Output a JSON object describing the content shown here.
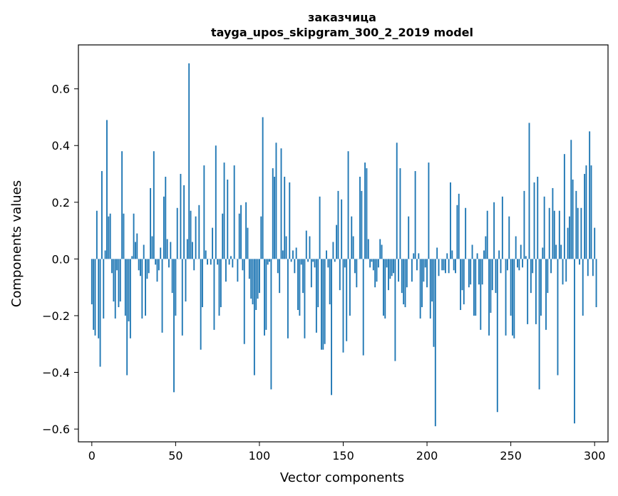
{
  "chart_data": {
    "type": "bar",
    "title": "заказчица",
    "subtitle": "tayga_upos_skipgram_300_2_2019 model",
    "xlabel": "Vector components",
    "ylabel": "Components values",
    "xlim": [
      -8,
      308
    ],
    "ylim": [
      -0.645,
      0.755
    ],
    "xticks": [
      0,
      50,
      100,
      150,
      200,
      250,
      300
    ],
    "yticks": [
      -0.6,
      -0.4,
      -0.2,
      0.0,
      0.2,
      0.4,
      0.6
    ],
    "ytick_labels": [
      "−0.6",
      "−0.4",
      "−0.2",
      "0.0",
      "0.2",
      "0.4",
      "0.6"
    ],
    "bar_color": "#1f77b4",
    "grid": false,
    "legend": "none",
    "values": [
      -0.16,
      -0.25,
      -0.27,
      0.17,
      -0.28,
      -0.38,
      0.31,
      -0.21,
      0.03,
      0.49,
      0.15,
      0.16,
      -0.05,
      -0.15,
      -0.21,
      -0.04,
      -0.17,
      -0.15,
      0.38,
      0.16,
      -0.2,
      -0.41,
      -0.22,
      -0.28,
      0.01,
      0.16,
      0.06,
      0.09,
      -0.04,
      -0.06,
      -0.21,
      0.05,
      -0.2,
      -0.07,
      -0.05,
      0.25,
      0.08,
      0.38,
      -0.02,
      -0.08,
      -0.04,
      0.04,
      -0.26,
      0.22,
      0.29,
      0.07,
      -0.03,
      0.06,
      -0.12,
      -0.47,
      -0.2,
      0.18,
      0.0,
      0.3,
      -0.27,
      0.26,
      -0.15,
      0.07,
      0.69,
      0.17,
      0.06,
      -0.04,
      0.15,
      0.0,
      0.19,
      -0.32,
      -0.17,
      0.33,
      0.03,
      -0.02,
      0.0,
      -0.02,
      0.11,
      -0.25,
      0.4,
      -0.02,
      -0.2,
      -0.17,
      0.16,
      0.34,
      -0.08,
      0.28,
      -0.02,
      0.01,
      -0.03,
      0.33,
      0.0,
      -0.08,
      0.16,
      0.19,
      -0.04,
      -0.3,
      0.2,
      0.11,
      -0.07,
      -0.14,
      -0.16,
      -0.41,
      -0.18,
      -0.14,
      -0.12,
      0.15,
      0.5,
      -0.27,
      -0.25,
      -0.02,
      -0.01,
      -0.46,
      0.32,
      0.29,
      0.41,
      -0.05,
      -0.12,
      0.39,
      0.03,
      0.29,
      0.08,
      -0.28,
      0.27,
      -0.01,
      0.03,
      -0.05,
      0.04,
      -0.18,
      -0.2,
      -0.02,
      -0.12,
      -0.28,
      0.1,
      -0.01,
      0.08,
      -0.1,
      -0.01,
      -0.03,
      -0.26,
      -0.17,
      0.22,
      -0.32,
      -0.32,
      -0.3,
      0.03,
      -0.03,
      -0.16,
      -0.48,
      0.06,
      -0.01,
      0.12,
      0.24,
      -0.11,
      0.21,
      -0.33,
      -0.03,
      -0.29,
      0.38,
      -0.2,
      0.15,
      0.08,
      -0.05,
      -0.1,
      0.0,
      0.29,
      0.24,
      -0.34,
      0.34,
      0.32,
      0.07,
      -0.03,
      -0.01,
      -0.04,
      -0.1,
      -0.08,
      -0.03,
      0.07,
      0.05,
      -0.2,
      -0.21,
      -0.03,
      -0.11,
      -0.07,
      -0.06,
      -0.05,
      -0.36,
      0.41,
      -0.08,
      0.32,
      -0.12,
      -0.16,
      -0.17,
      -0.1,
      0.15,
      0.0,
      -0.08,
      0.02,
      0.31,
      -0.04,
      0.02,
      -0.21,
      -0.17,
      -0.08,
      -0.03,
      -0.1,
      0.34,
      -0.21,
      -0.15,
      -0.31,
      -0.59,
      0.04,
      -0.06,
      0.0,
      -0.04,
      -0.04,
      -0.05,
      0.02,
      -0.05,
      0.27,
      0.03,
      -0.04,
      -0.05,
      0.19,
      0.23,
      -0.18,
      -0.11,
      -0.16,
      0.18,
      0.0,
      -0.1,
      -0.09,
      0.05,
      -0.2,
      -0.2,
      0.02,
      -0.09,
      -0.25,
      -0.09,
      0.03,
      0.08,
      0.17,
      -0.27,
      -0.19,
      -0.11,
      0.2,
      -0.12,
      -0.54,
      0.03,
      -0.05,
      0.22,
      0.0,
      -0.27,
      -0.04,
      0.15,
      -0.2,
      -0.27,
      -0.28,
      0.08,
      -0.03,
      -0.04,
      0.05,
      -0.03,
      0.24,
      0.01,
      -0.23,
      0.48,
      -0.12,
      -0.05,
      0.27,
      -0.23,
      0.29,
      -0.46,
      -0.2,
      0.04,
      0.22,
      -0.25,
      -0.12,
      0.18,
      -0.05,
      0.25,
      0.17,
      0.05,
      -0.41,
      0.17,
      0.05,
      -0.09,
      0.37,
      -0.08,
      0.11,
      0.15,
      0.42,
      0.28,
      -0.58,
      0.24,
      0.18,
      -0.02,
      0.18,
      -0.2,
      0.3,
      0.33,
      -0.06,
      0.45,
      0.33,
      -0.06,
      0.11,
      -0.17
    ]
  }
}
